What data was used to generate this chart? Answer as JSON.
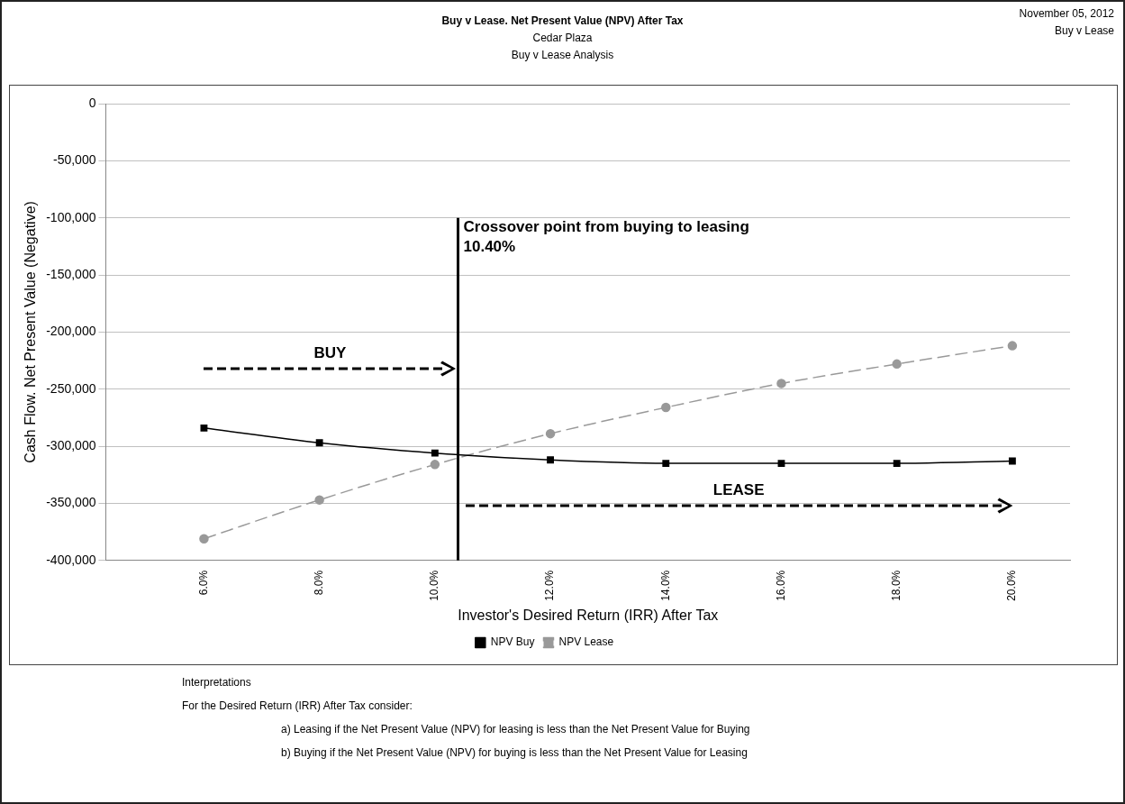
{
  "chart_data": {
    "type": "line",
    "title": "Buy v Lease. Net Present Value (NPV) After Tax",
    "subtitle": "Cedar Plaza\nBuy v Lease Analysis",
    "xlabel": "Investor's Desired Return (IRR) After Tax",
    "ylabel": "Cash Flow. Net Present Value (Negative)",
    "x": [
      6,
      8,
      10,
      12,
      14,
      16,
      18,
      20
    ],
    "series": [
      {
        "name": "NPV Buy",
        "color": "#000000",
        "marker": "square",
        "line_style": "solid",
        "values": [
          -284000,
          -297000,
          -306000,
          -312000,
          -315000,
          -315000,
          -315000,
          -313000
        ]
      },
      {
        "name": "NPV Lease",
        "color": "#999999",
        "marker": "circle",
        "line_style": "dashed",
        "values": [
          -381000,
          -347000,
          -316000,
          -289000,
          -266000,
          -245000,
          -228000,
          -212000
        ]
      }
    ],
    "xlim": [
      4.3,
      21
    ],
    "xticks": [
      {
        "value": 6,
        "label": "6.0%"
      },
      {
        "value": 8,
        "label": "8.0%"
      },
      {
        "value": 10,
        "label": "10.0%"
      },
      {
        "value": 12,
        "label": "12.0%"
      },
      {
        "value": 14,
        "label": "14.0%"
      },
      {
        "value": 16,
        "label": "16.0%"
      },
      {
        "value": 18,
        "label": "18.0%"
      },
      {
        "value": 20,
        "label": "20.0%"
      }
    ],
    "ylim": [
      -400000,
      0
    ],
    "yticks": [
      {
        "value": -400000,
        "label": "-400,000"
      },
      {
        "value": -350000,
        "label": "-350,000"
      },
      {
        "value": -300000,
        "label": "-300,000"
      },
      {
        "value": -250000,
        "label": "-250,000"
      },
      {
        "value": -200000,
        "label": "-200,000"
      },
      {
        "value": -150000,
        "label": "-150,000"
      },
      {
        "value": -100000,
        "label": "-100,000"
      },
      {
        "value": -50000,
        "label": "-50,000"
      },
      0
    ],
    "ref_lines": [
      {
        "axis": "x",
        "value": 10.4,
        "label": "Crossover point from buying to leasing\n10.40%",
        "color": "#000000"
      }
    ],
    "annotations": [
      "November 05, 2012",
      "Buy v Lease",
      "BUY",
      "LEASE",
      "Interpretations",
      "For the Desired Return (IRR) After Tax consider:",
      "a) Leasing if the Net Present Value (NPV) for leasing is less than the Net Present Value for Buying",
      "b) Buying if the Net Present Value (NPV) for buying is less than the Net Present Value for Leasing"
    ],
    "grid": "y",
    "legend": "bottom"
  }
}
